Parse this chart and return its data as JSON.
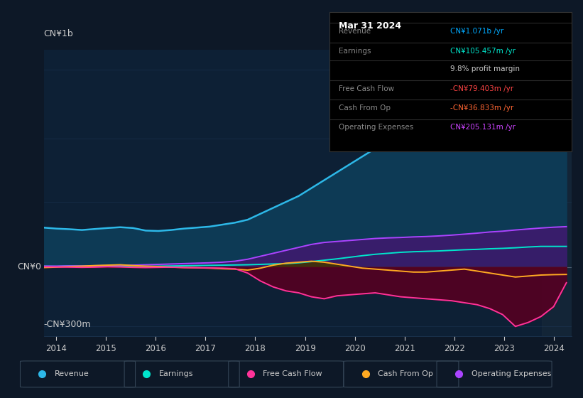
{
  "background_color": "#0d1827",
  "plot_bg_color": "#0d1827",
  "chart_bg_color": "#0d2035",
  "title_box": {
    "date": "Mar 31 2024",
    "rows": [
      {
        "label": "Revenue",
        "value": "CN¥1.071b /yr",
        "value_color": "#00aaff",
        "bold_part": "CN¥1.071b"
      },
      {
        "label": "Earnings",
        "value": "CN¥105.457m /yr",
        "value_color": "#00e5cc",
        "bold_part": "CN¥105.457m"
      },
      {
        "label": "",
        "value": "9.8% profit margin",
        "value_color": "#cccccc",
        "bold_part": "9.8%"
      },
      {
        "label": "Free Cash Flow",
        "value": "-CN¥79.403m /yr",
        "value_color": "#ff4444",
        "bold_part": "-CN¥79.403m"
      },
      {
        "label": "Cash From Op",
        "value": "-CN¥36.833m /yr",
        "value_color": "#ff6633",
        "bold_part": "-CN¥36.833m"
      },
      {
        "label": "Operating Expenses",
        "value": "CN¥205.131m /yr",
        "value_color": "#cc44ff",
        "bold_part": "CN¥205.131m"
      }
    ]
  },
  "ylabel_top": "CN¥1b",
  "ylabel_zero": "CN¥0",
  "ylabel_bottom": "-CN¥300m",
  "x_ticks": [
    2014,
    2015,
    2016,
    2017,
    2018,
    2019,
    2020,
    2021,
    2022,
    2023,
    2024
  ],
  "series": {
    "revenue": {
      "color": "#2db8e8",
      "fill_color": "#0d3a55",
      "label": "Revenue"
    },
    "earnings": {
      "color": "#00e5cc",
      "fill_color": "#004040",
      "label": "Earnings"
    },
    "free_cash_flow": {
      "color": "#ff3399",
      "fill_color": "#550022",
      "label": "Free Cash Flow"
    },
    "cash_from_op": {
      "color": "#ffaa22",
      "fill_color": "#443300",
      "label": "Cash From Op"
    },
    "operating_expenses": {
      "color": "#aa44ff",
      "fill_color": "#3d1a6e",
      "label": "Operating Expenses"
    }
  },
  "legend": [
    {
      "label": "Revenue",
      "color": "#2db8e8"
    },
    {
      "label": "Earnings",
      "color": "#00e5cc"
    },
    {
      "label": "Free Cash Flow",
      "color": "#ff3399"
    },
    {
      "label": "Cash From Op",
      "color": "#ffaa22"
    },
    {
      "label": "Operating Expenses",
      "color": "#aa44ff"
    }
  ],
  "grid_color": "#1e3a5a",
  "text_color": "#cccccc",
  "label_color": "#888888"
}
